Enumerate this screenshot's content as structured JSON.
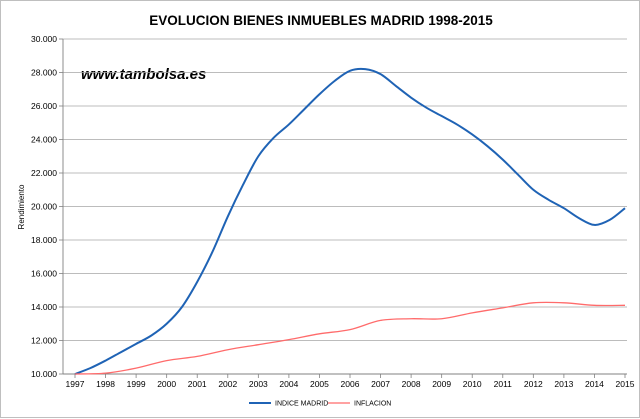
{
  "chart_data": {
    "type": "line",
    "title": "EVOLUCION BIENES INMUEBLES MADRID 1998-2015",
    "watermark": "www.tambolsa.es",
    "ylabel": "Rendimiento",
    "xlabel": "",
    "ylim": [
      10000,
      30000
    ],
    "ytick_values": [
      10000,
      12000,
      14000,
      16000,
      18000,
      20000,
      22000,
      24000,
      26000,
      28000,
      30000
    ],
    "ytick_labels": [
      "10.000",
      "12.000",
      "14.000",
      "16.000",
      "18.000",
      "20.000",
      "22.000",
      "24.000",
      "26.000",
      "28.000",
      "30.000"
    ],
    "categories": [
      "1997",
      "1998",
      "1999",
      "2000",
      "2001",
      "2002",
      "2003",
      "2004",
      "2005",
      "2006",
      "2007",
      "2008",
      "2009",
      "2010",
      "2011",
      "2012",
      "2013",
      "2014",
      "2015"
    ],
    "grid": true,
    "legend_position": "bottom",
    "series": [
      {
        "name": "INDICE MADRID",
        "color": "#1f63b5",
        "x": [
          1997,
          1997.5,
          1998,
          1998.5,
          1999,
          1999.5,
          2000,
          2000.5,
          2001,
          2001.5,
          2002,
          2002.5,
          2003,
          2003.5,
          2004,
          2004.5,
          2005,
          2005.5,
          2006,
          2006.5,
          2007,
          2007.5,
          2008,
          2008.5,
          2009,
          2009.5,
          2010,
          2010.5,
          2011,
          2011.5,
          2012,
          2012.5,
          2013,
          2013.5,
          2014,
          2014.5,
          2015
        ],
        "values": [
          10000,
          10350,
          10800,
          11300,
          11800,
          12300,
          13000,
          14000,
          15500,
          17300,
          19400,
          21300,
          23000,
          24100,
          24900,
          25800,
          26700,
          27500,
          28100,
          28200,
          27900,
          27200,
          26500,
          25900,
          25400,
          24900,
          24300,
          23600,
          22800,
          21900,
          21000,
          20400,
          19900,
          19300,
          18900,
          19200,
          19900
        ]
      },
      {
        "name": "INFLACION",
        "color": "#ff6b6b",
        "x": [
          1997,
          1998,
          1999,
          2000,
          2001,
          2002,
          2003,
          2004,
          2005,
          2006,
          2007,
          2008,
          2009,
          2010,
          2011,
          2012,
          2013,
          2014,
          2015
        ],
        "values": [
          10000,
          10050,
          10350,
          10800,
          11050,
          11450,
          11750,
          12050,
          12400,
          12650,
          13200,
          13300,
          13300,
          13650,
          13950,
          14250,
          14250,
          14100,
          14100
        ]
      }
    ]
  }
}
